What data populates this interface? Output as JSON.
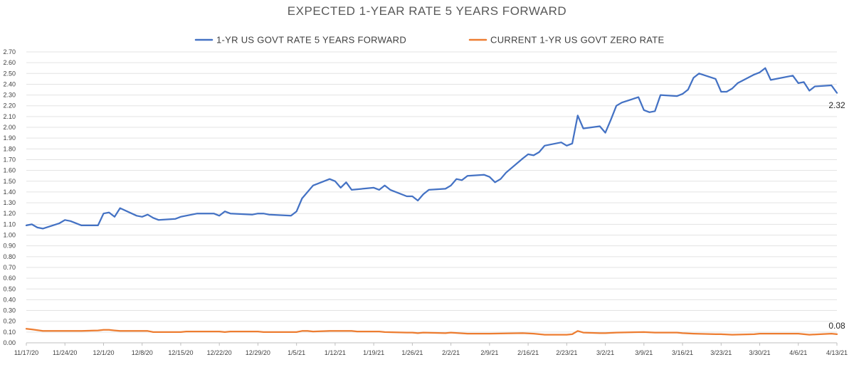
{
  "chart_data": {
    "type": "line",
    "title": "EXPECTED 1-YEAR RATE 5 YEARS FORWARD",
    "xlabel": "",
    "ylabel": "",
    "ylim": [
      0,
      2.7
    ],
    "y_ticks": [
      "0.00",
      "0.10",
      "0.20",
      "0.30",
      "0.40",
      "0.50",
      "0.60",
      "0.70",
      "0.80",
      "0.90",
      "1.00",
      "1.10",
      "1.20",
      "1.30",
      "1.40",
      "1.50",
      "1.60",
      "1.70",
      "1.80",
      "1.90",
      "2.00",
      "2.10",
      "2.20",
      "2.30",
      "2.40",
      "2.50",
      "2.60",
      "2.70"
    ],
    "x_range_days": [
      0,
      147
    ],
    "x_ticks": [
      {
        "label": "11/17/20",
        "day": 0
      },
      {
        "label": "11/24/20",
        "day": 7
      },
      {
        "label": "12/1/20",
        "day": 14
      },
      {
        "label": "12/8/20",
        "day": 21
      },
      {
        "label": "12/15/20",
        "day": 28
      },
      {
        "label": "12/22/20",
        "day": 35
      },
      {
        "label": "12/29/20",
        "day": 42
      },
      {
        "label": "1/5/21",
        "day": 49
      },
      {
        "label": "1/12/21",
        "day": 56
      },
      {
        "label": "1/19/21",
        "day": 63
      },
      {
        "label": "1/26/21",
        "day": 70
      },
      {
        "label": "2/2/21",
        "day": 77
      },
      {
        "label": "2/9/21",
        "day": 84
      },
      {
        "label": "2/16/21",
        "day": 91
      },
      {
        "label": "2/23/21",
        "day": 98
      },
      {
        "label": "3/2/21",
        "day": 105
      },
      {
        "label": "3/9/21",
        "day": 112
      },
      {
        "label": "3/16/21",
        "day": 119
      },
      {
        "label": "3/23/21",
        "day": 126
      },
      {
        "label": "3/30/21",
        "day": 133
      },
      {
        "label": "4/6/21",
        "day": 140
      },
      {
        "label": "4/13/21",
        "day": 147
      }
    ],
    "legend_position": "top",
    "series": [
      {
        "name": "1-YR US GOVT RATE 5 YEARS FORWARD",
        "color": "#4472c4",
        "end_label": "2.32",
        "points": [
          [
            0,
            1.09
          ],
          [
            1,
            1.1
          ],
          [
            2,
            1.07
          ],
          [
            3,
            1.06
          ],
          [
            6,
            1.11
          ],
          [
            7,
            1.14
          ],
          [
            8,
            1.13
          ],
          [
            10,
            1.09
          ],
          [
            13,
            1.09
          ],
          [
            14,
            1.2
          ],
          [
            15,
            1.21
          ],
          [
            16,
            1.17
          ],
          [
            17,
            1.25
          ],
          [
            20,
            1.18
          ],
          [
            21,
            1.17
          ],
          [
            22,
            1.19
          ],
          [
            23,
            1.16
          ],
          [
            24,
            1.14
          ],
          [
            27,
            1.15
          ],
          [
            28,
            1.17
          ],
          [
            31,
            1.2
          ],
          [
            34,
            1.2
          ],
          [
            35,
            1.18
          ],
          [
            36,
            1.22
          ],
          [
            37,
            1.2
          ],
          [
            41,
            1.19
          ],
          [
            42,
            1.2
          ],
          [
            43,
            1.2
          ],
          [
            44,
            1.19
          ],
          [
            48,
            1.18
          ],
          [
            49,
            1.22
          ],
          [
            50,
            1.34
          ],
          [
            52,
            1.46
          ],
          [
            55,
            1.52
          ],
          [
            56,
            1.5
          ],
          [
            57,
            1.44
          ],
          [
            58,
            1.49
          ],
          [
            59,
            1.42
          ],
          [
            63,
            1.44
          ],
          [
            64,
            1.42
          ],
          [
            65,
            1.46
          ],
          [
            66,
            1.42
          ],
          [
            69,
            1.36
          ],
          [
            70,
            1.36
          ],
          [
            71,
            1.32
          ],
          [
            72,
            1.38
          ],
          [
            73,
            1.42
          ],
          [
            76,
            1.43
          ],
          [
            77,
            1.46
          ],
          [
            78,
            1.52
          ],
          [
            79,
            1.51
          ],
          [
            80,
            1.55
          ],
          [
            83,
            1.56
          ],
          [
            84,
            1.54
          ],
          [
            85,
            1.49
          ],
          [
            86,
            1.52
          ],
          [
            87,
            1.58
          ],
          [
            90,
            1.71
          ],
          [
            91,
            1.75
          ],
          [
            92,
            1.74
          ],
          [
            93,
            1.77
          ],
          [
            94,
            1.83
          ],
          [
            97,
            1.86
          ],
          [
            98,
            1.83
          ],
          [
            99,
            1.85
          ],
          [
            100,
            2.11
          ],
          [
            101,
            1.99
          ],
          [
            104,
            2.01
          ],
          [
            105,
            1.95
          ],
          [
            106,
            2.07
          ],
          [
            107,
            2.2
          ],
          [
            108,
            2.23
          ],
          [
            111,
            2.28
          ],
          [
            112,
            2.16
          ],
          [
            113,
            2.14
          ],
          [
            114,
            2.15
          ],
          [
            115,
            2.3
          ],
          [
            118,
            2.29
          ],
          [
            119,
            2.31
          ],
          [
            120,
            2.35
          ],
          [
            121,
            2.46
          ],
          [
            122,
            2.5
          ],
          [
            125,
            2.45
          ],
          [
            126,
            2.33
          ],
          [
            127,
            2.33
          ],
          [
            128,
            2.36
          ],
          [
            129,
            2.41
          ],
          [
            132,
            2.49
          ],
          [
            133,
            2.51
          ],
          [
            134,
            2.55
          ],
          [
            135,
            2.44
          ],
          [
            139,
            2.48
          ],
          [
            140,
            2.41
          ],
          [
            141,
            2.42
          ],
          [
            142,
            2.34
          ],
          [
            143,
            2.38
          ],
          [
            146,
            2.39
          ],
          [
            147,
            2.32
          ]
        ]
      },
      {
        "name": "CURRENT 1-YR US GOVT ZERO RATE",
        "color": "#ed7d31",
        "end_label": "0.08",
        "points": [
          [
            0,
            0.13
          ],
          [
            1,
            0.125
          ],
          [
            3,
            0.11
          ],
          [
            7,
            0.11
          ],
          [
            10,
            0.11
          ],
          [
            13,
            0.115
          ],
          [
            14,
            0.12
          ],
          [
            15,
            0.12
          ],
          [
            16,
            0.115
          ],
          [
            17,
            0.11
          ],
          [
            21,
            0.11
          ],
          [
            22,
            0.11
          ],
          [
            23,
            0.1
          ],
          [
            27,
            0.1
          ],
          [
            28,
            0.1
          ],
          [
            29,
            0.105
          ],
          [
            35,
            0.105
          ],
          [
            36,
            0.1
          ],
          [
            37,
            0.105
          ],
          [
            42,
            0.105
          ],
          [
            43,
            0.1
          ],
          [
            49,
            0.1
          ],
          [
            50,
            0.11
          ],
          [
            51,
            0.11
          ],
          [
            52,
            0.105
          ],
          [
            55,
            0.11
          ],
          [
            59,
            0.11
          ],
          [
            60,
            0.105
          ],
          [
            64,
            0.105
          ],
          [
            65,
            0.1
          ],
          [
            69,
            0.095
          ],
          [
            70,
            0.095
          ],
          [
            71,
            0.09
          ],
          [
            72,
            0.095
          ],
          [
            76,
            0.09
          ],
          [
            77,
            0.095
          ],
          [
            80,
            0.085
          ],
          [
            84,
            0.085
          ],
          [
            90,
            0.09
          ],
          [
            92,
            0.085
          ],
          [
            94,
            0.075
          ],
          [
            98,
            0.075
          ],
          [
            99,
            0.08
          ],
          [
            100,
            0.11
          ],
          [
            101,
            0.095
          ],
          [
            104,
            0.09
          ],
          [
            105,
            0.09
          ],
          [
            107,
            0.095
          ],
          [
            112,
            0.1
          ],
          [
            114,
            0.095
          ],
          [
            118,
            0.095
          ],
          [
            119,
            0.09
          ],
          [
            121,
            0.085
          ],
          [
            125,
            0.08
          ],
          [
            126,
            0.08
          ],
          [
            128,
            0.075
          ],
          [
            132,
            0.08
          ],
          [
            133,
            0.085
          ],
          [
            140,
            0.085
          ],
          [
            142,
            0.075
          ],
          [
            144,
            0.08
          ],
          [
            146,
            0.085
          ],
          [
            147,
            0.08
          ]
        ]
      }
    ]
  }
}
